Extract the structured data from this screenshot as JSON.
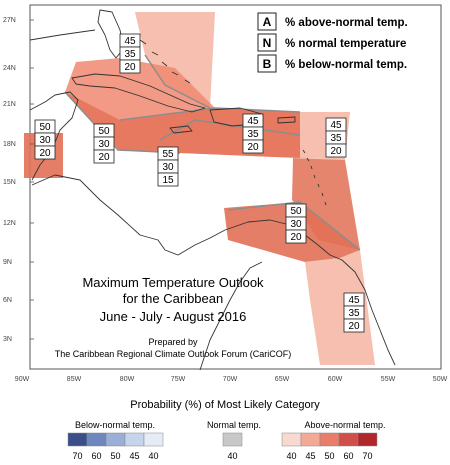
{
  "map": {
    "lat_ticks": [
      "27N",
      "24N",
      "21N",
      "18N",
      "15N",
      "12N",
      "9N",
      "6N",
      "3N"
    ],
    "lon_ticks": [
      "90W",
      "85W",
      "80W",
      "75W",
      "70W",
      "65W",
      "60W",
      "55W",
      "50W"
    ],
    "title_lines": [
      "Maximum Temperature Outlook",
      "for the Caribbean",
      "June - July - August 2016"
    ],
    "credit_lines": [
      "Prepared by",
      "The Caribbean Regional Climate Outlook Forum (CariCOF)"
    ],
    "key": [
      {
        "letter": "A",
        "text": "% above-normal temp."
      },
      {
        "letter": "N",
        "text": "% normal temperature"
      },
      {
        "letter": "B",
        "text": "% below-normal temp."
      }
    ],
    "zones": [
      {
        "id": "bahamas",
        "above": "45",
        "normal": "35",
        "below": "20",
        "color": "#f5b8a6"
      },
      {
        "id": "greater-antilles",
        "above": "45",
        "normal": "35",
        "below": "20",
        "color": "#f08870"
      },
      {
        "id": "belize",
        "above": "50",
        "normal": "30",
        "below": "20",
        "color": "#e27055"
      },
      {
        "id": "jamaica-cayman",
        "above": "50",
        "normal": "30",
        "below": "20",
        "color": "#e27055"
      },
      {
        "id": "western-cuba",
        "above": "55",
        "normal": "30",
        "below": "15",
        "color": "#e27055"
      },
      {
        "id": "lesser-antilles-north",
        "above": "45",
        "normal": "35",
        "below": "20",
        "color": "#f5b8a6"
      },
      {
        "id": "southern-caribbean",
        "above": "50",
        "normal": "30",
        "below": "20",
        "color": "#e27055"
      },
      {
        "id": "guianas",
        "above": "45",
        "normal": "35",
        "below": "20",
        "color": "#f5b8a6"
      }
    ]
  },
  "legend": {
    "title": "Probability (%) of Most Likely Category",
    "below": {
      "label": "Below-normal temp.",
      "ticks": [
        "70",
        "60",
        "50",
        "45",
        "40"
      ],
      "colors": [
        "#3a4f8a",
        "#6d86bd",
        "#9aaed7",
        "#c6d3ec",
        "#e6ecf7"
      ]
    },
    "normal": {
      "label": "Normal temp.",
      "ticks": [
        "40"
      ],
      "colors": [
        "#c8c8c8"
      ]
    },
    "above": {
      "label": "Above-normal temp.",
      "ticks": [
        "40",
        "45",
        "50",
        "60",
        "70"
      ],
      "colors": [
        "#f9d9cf",
        "#f3a995",
        "#e87d6c",
        "#d24e4a",
        "#b0262c"
      ]
    }
  }
}
